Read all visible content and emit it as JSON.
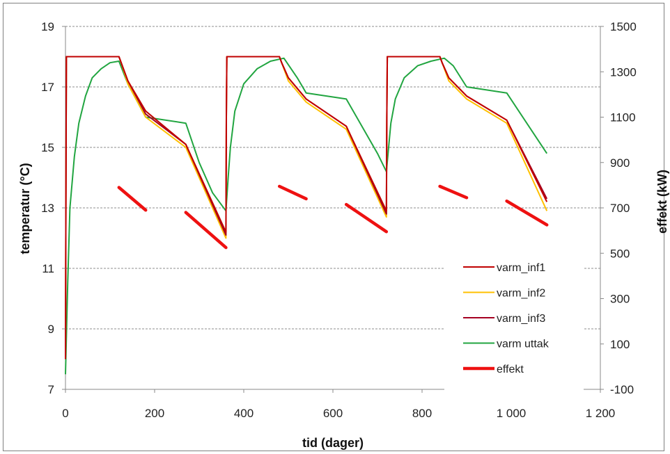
{
  "chart_data": {
    "type": "line",
    "xlabel": "tid (dager)",
    "ylabel": "temperatur (°C)",
    "y2label": "effekt (kW)",
    "xlim": [
      0,
      1200
    ],
    "ylim": [
      7,
      19
    ],
    "y2lim": [
      -100,
      1500
    ],
    "x_ticks": [
      0,
      200,
      400,
      600,
      800,
      1000,
      1200
    ],
    "x_tick_labels": [
      "0",
      "200",
      "400",
      "600",
      "800",
      "1 000",
      "1 200"
    ],
    "y_ticks": [
      7,
      9,
      11,
      13,
      15,
      17,
      19
    ],
    "y_tick_labels": [
      "7",
      "9",
      "11",
      "13",
      "15",
      "17",
      "19"
    ],
    "y2_ticks": [
      -100,
      100,
      300,
      500,
      700,
      900,
      1100,
      1300,
      1500
    ],
    "y2_tick_labels": [
      "-100",
      "100",
      "300",
      "500",
      "700",
      "900",
      "1100",
      "1300",
      "1500"
    ],
    "grid": "horizontal dashed",
    "legend_position": "bottom-right",
    "series": [
      {
        "name": "varm_inf1",
        "color": "#c00000",
        "axis": "left",
        "x": [
          0,
          1,
          2,
          120,
          125,
          140,
          180,
          270,
          360,
          361,
          362,
          480,
          485,
          500,
          540,
          630,
          720,
          721,
          722,
          840,
          845,
          860,
          900,
          990,
          1080
        ],
        "y": [
          8.0,
          13.0,
          18.0,
          18.0,
          17.8,
          17.2,
          16.2,
          15.1,
          12.2,
          16.0,
          18.0,
          18.0,
          17.8,
          17.3,
          16.6,
          15.7,
          12.9,
          16.0,
          18.0,
          18.0,
          17.8,
          17.3,
          16.7,
          15.9,
          13.2
        ]
      },
      {
        "name": "varm_inf2",
        "color": "#ffc000",
        "axis": "left",
        "x": [
          0,
          1,
          2,
          120,
          125,
          140,
          180,
          270,
          360,
          361,
          362,
          480,
          485,
          500,
          540,
          630,
          720,
          721,
          722,
          840,
          845,
          860,
          900,
          990,
          1080
        ],
        "y": [
          8.0,
          13.0,
          18.0,
          18.0,
          17.8,
          17.1,
          16.0,
          15.0,
          12.0,
          16.0,
          18.0,
          18.0,
          17.8,
          17.2,
          16.5,
          15.6,
          12.7,
          16.0,
          18.0,
          18.0,
          17.8,
          17.2,
          16.6,
          15.8,
          12.9
        ]
      },
      {
        "name": "varm_inf3",
        "color": "#a50021",
        "axis": "left",
        "x": [
          0,
          1,
          2,
          120,
          125,
          140,
          180,
          270,
          360,
          361,
          362,
          480,
          485,
          500,
          540,
          630,
          720,
          721,
          722,
          840,
          845,
          860,
          900,
          990,
          1080
        ],
        "y": [
          8.0,
          13.0,
          18.0,
          18.0,
          17.8,
          17.2,
          16.1,
          15.1,
          12.1,
          16.0,
          18.0,
          18.0,
          17.8,
          17.3,
          16.6,
          15.7,
          12.8,
          16.0,
          18.0,
          18.0,
          17.8,
          17.3,
          16.7,
          15.9,
          13.3
        ]
      },
      {
        "name": "varm uttak",
        "color": "#21a540",
        "axis": "left",
        "x": [
          0,
          5,
          10,
          20,
          30,
          45,
          60,
          80,
          100,
          120,
          140,
          180,
          270,
          300,
          330,
          360,
          365,
          370,
          380,
          400,
          430,
          460,
          490,
          520,
          540,
          630,
          700,
          720,
          725,
          730,
          740,
          760,
          790,
          820,
          850,
          870,
          900,
          990,
          1080
        ],
        "y": [
          7.5,
          10.5,
          13.0,
          14.7,
          15.8,
          16.7,
          17.3,
          17.6,
          17.8,
          17.85,
          17.1,
          16.0,
          15.8,
          14.5,
          13.5,
          12.9,
          14.0,
          15.0,
          16.2,
          17.1,
          17.6,
          17.85,
          17.95,
          17.3,
          16.8,
          16.6,
          14.8,
          14.2,
          15.0,
          15.8,
          16.6,
          17.3,
          17.7,
          17.85,
          17.95,
          17.7,
          17.0,
          16.8,
          14.8
        ]
      }
    ],
    "effekt": {
      "name": "effekt",
      "color": "#ee1111",
      "axis": "right",
      "segments": [
        {
          "x": [
            120,
            180
          ],
          "y": [
            790,
            690
          ]
        },
        {
          "x": [
            270,
            360
          ],
          "y": [
            680,
            525
          ]
        },
        {
          "x": [
            480,
            540
          ],
          "y": [
            795,
            740
          ]
        },
        {
          "x": [
            630,
            720
          ],
          "y": [
            715,
            595
          ]
        },
        {
          "x": [
            840,
            900
          ],
          "y": [
            795,
            745
          ]
        },
        {
          "x": [
            990,
            1080
          ],
          "y": [
            730,
            625
          ]
        }
      ]
    }
  }
}
